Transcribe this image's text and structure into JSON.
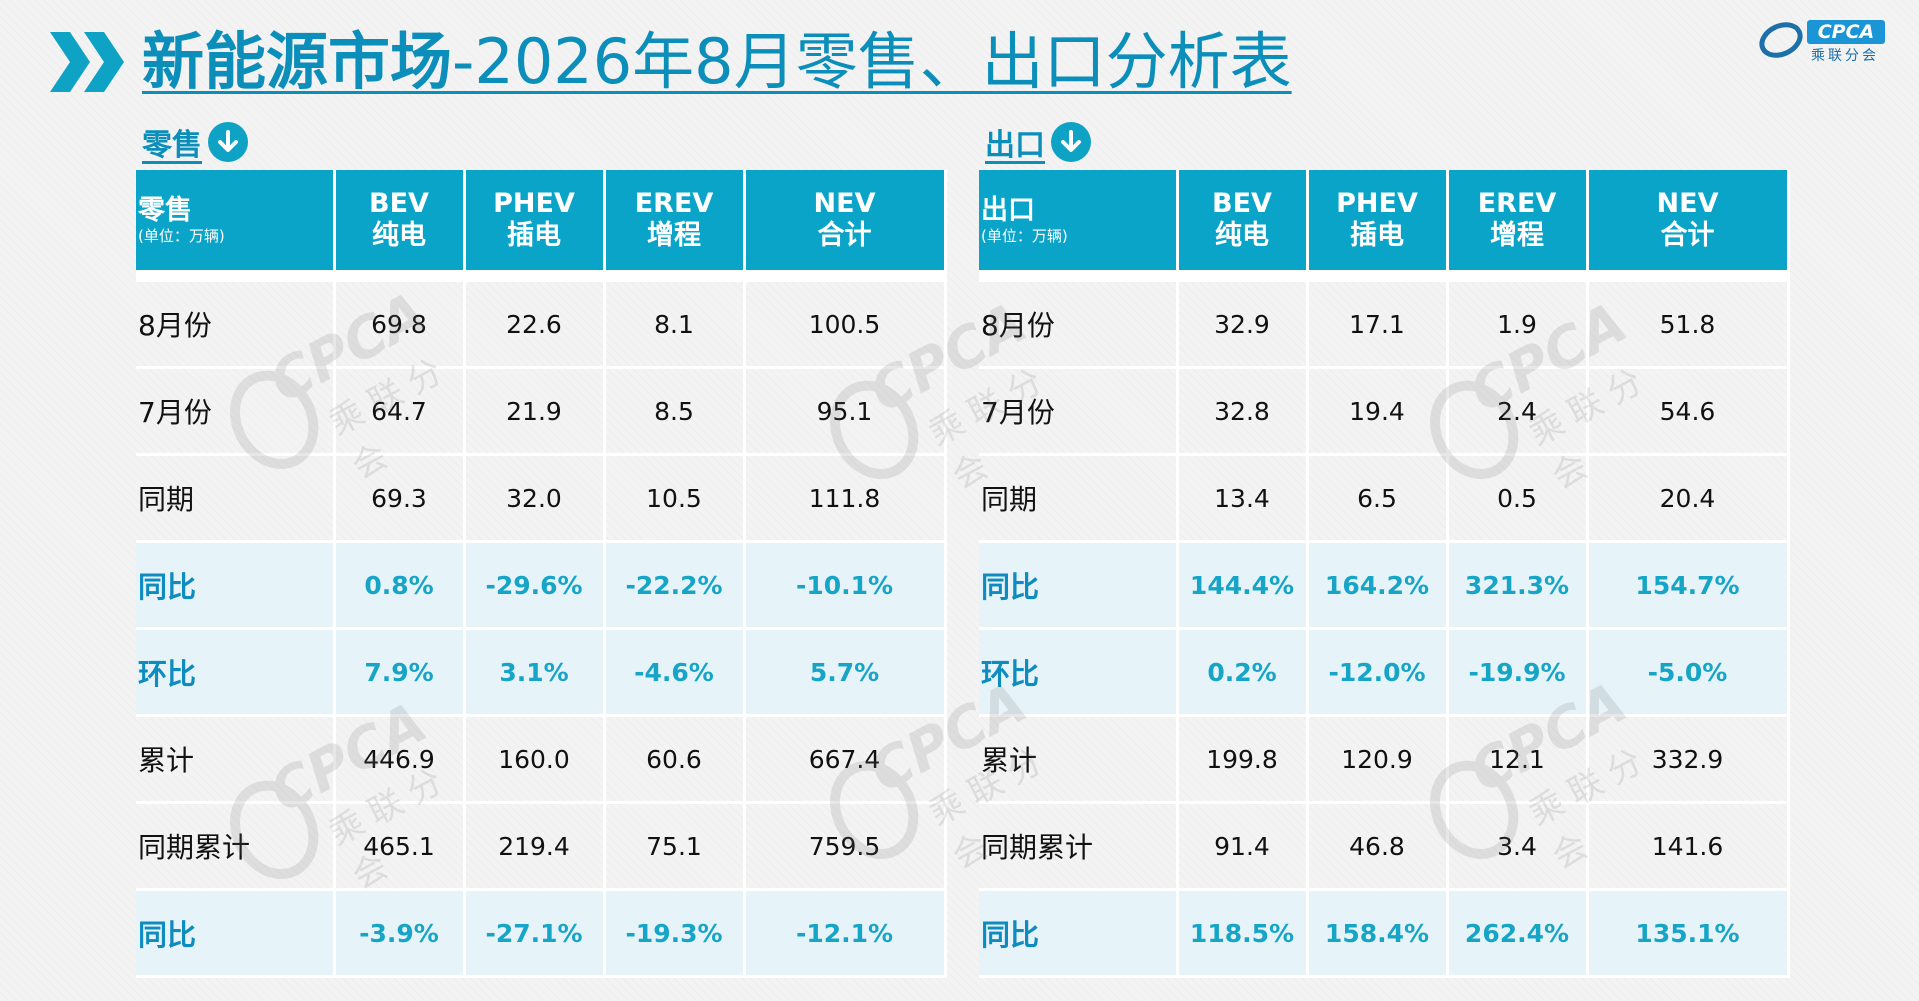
{
  "title": {
    "bold_part": "新能源市场",
    "rest": "-2026年8月零售、出口分析表"
  },
  "logo": {
    "brand": "CPCA",
    "sub": "乘联分会"
  },
  "retail": {
    "section_label": "零售",
    "corner_title": "零售",
    "corner_unit": "(单位：万辆)",
    "headers": [
      {
        "code": "BEV",
        "name": "纯电"
      },
      {
        "code": "PHEV",
        "name": "插电"
      },
      {
        "code": "EREV",
        "name": "增程"
      },
      {
        "code": "NEV",
        "name": "合计"
      }
    ],
    "rows": [
      {
        "label": "8月份",
        "values": [
          "69.8",
          "22.6",
          "8.1",
          "100.5"
        ]
      },
      {
        "label": "7月份",
        "values": [
          "64.7",
          "21.9",
          "8.5",
          "95.1"
        ]
      },
      {
        "label": "同期",
        "values": [
          "69.3",
          "32.0",
          "10.5",
          "111.8"
        ]
      },
      {
        "label": "同比",
        "values": [
          "0.8%",
          "-29.6%",
          "-22.2%",
          "-10.1%"
        ]
      },
      {
        "label": "环比",
        "values": [
          "7.9%",
          "3.1%",
          "-4.6%",
          "5.7%"
        ]
      },
      {
        "label": "累计",
        "values": [
          "446.9",
          "160.0",
          "60.6",
          "667.4"
        ]
      },
      {
        "label": "同期累计",
        "values": [
          "465.1",
          "219.4",
          "75.1",
          "759.5"
        ]
      },
      {
        "label": "同比",
        "values": [
          "-3.9%",
          "-27.1%",
          "-19.3%",
          "-12.1%"
        ]
      }
    ]
  },
  "export": {
    "section_label": "出口",
    "corner_title": "出口",
    "corner_unit": "(单位：万辆)",
    "headers": [
      {
        "code": "BEV",
        "name": "纯电"
      },
      {
        "code": "PHEV",
        "name": "插电"
      },
      {
        "code": "EREV",
        "name": "增程"
      },
      {
        "code": "NEV",
        "name": "合计"
      }
    ],
    "rows": [
      {
        "label": "8月份",
        "values": [
          "32.9",
          "17.1",
          "1.9",
          "51.8"
        ]
      },
      {
        "label": "7月份",
        "values": [
          "32.8",
          "19.4",
          "2.4",
          "54.6"
        ]
      },
      {
        "label": "同期",
        "values": [
          "13.4",
          "6.5",
          "0.5",
          "20.4"
        ]
      },
      {
        "label": "同比",
        "values": [
          "144.4%",
          "164.2%",
          "321.3%",
          "154.7%"
        ]
      },
      {
        "label": "环比",
        "values": [
          "0.2%",
          "-12.0%",
          "-19.9%",
          "-5.0%"
        ]
      },
      {
        "label": "累计",
        "values": [
          "199.8",
          "120.9",
          "12.1",
          "332.9"
        ]
      },
      {
        "label": "同期累计",
        "values": [
          "91.4",
          "46.8",
          "3.4",
          "141.6"
        ]
      },
      {
        "label": "同比",
        "values": [
          "118.5%",
          "158.4%",
          "262.4%",
          "135.1%"
        ]
      }
    ]
  },
  "colors": {
    "accent": "#0ba4c9",
    "title": "#0c8ebb",
    "pct_text": "#16a5c6",
    "pct_row_bg": "#e3f2f9"
  }
}
